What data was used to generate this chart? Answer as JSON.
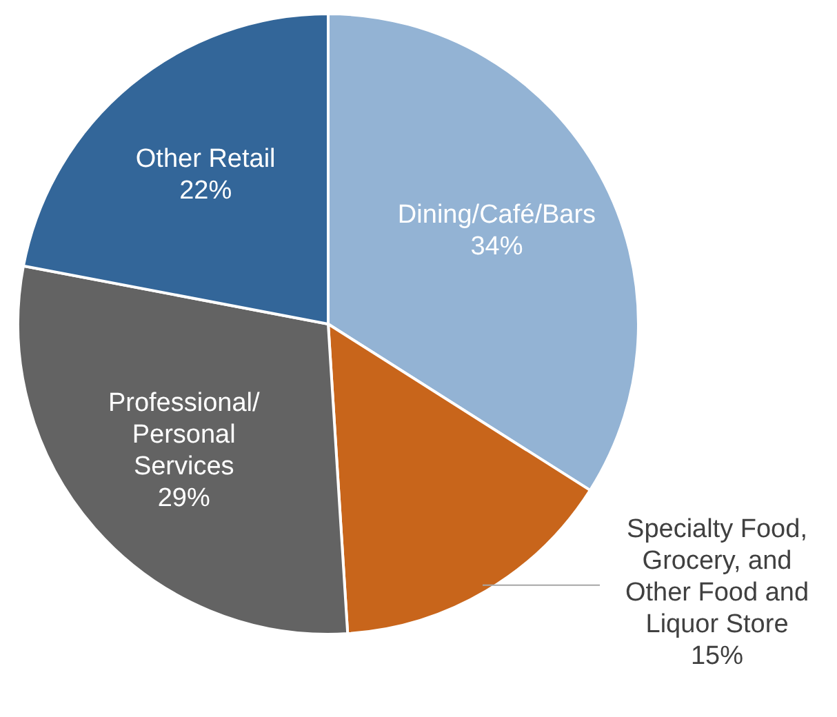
{
  "chart_data": {
    "type": "pie",
    "categories": [
      "Dining/Café/Bars",
      "Specialty Food, Grocery, and Other Food and Liquor Store",
      "Professional/ Personal Services",
      "Other Retail"
    ],
    "values": [
      34,
      15,
      29,
      22
    ],
    "colors": [
      "#93b3d4",
      "#c8651b",
      "#636363",
      "#336699"
    ],
    "value_labels": [
      "34%",
      "15%",
      "29%",
      "22%"
    ],
    "legend": false
  }
}
